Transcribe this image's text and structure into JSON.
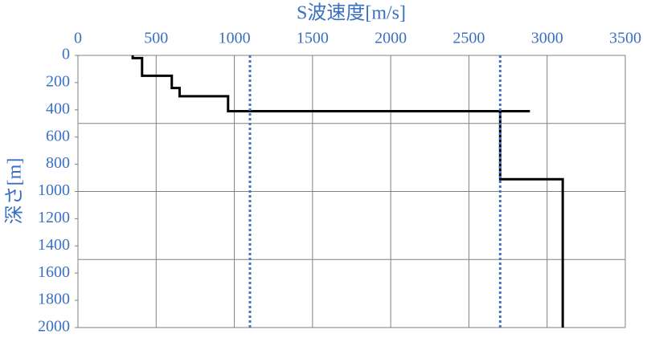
{
  "chart_data": {
    "type": "line",
    "x_label": "S波速度[m/s]",
    "y_label": "深さ[m]",
    "xlim": [
      0,
      3500
    ],
    "xticks": [
      0,
      500,
      1000,
      1500,
      2000,
      2500,
      3000,
      3500
    ],
    "ylim": [
      0,
      2000
    ],
    "yticks": [
      0,
      200,
      400,
      600,
      800,
      1000,
      1200,
      1400,
      1600,
      1800,
      2000
    ],
    "y_inverted": true,
    "x_axis_position": "top",
    "grid": true,
    "ygrid": [
      500,
      1000,
      1500
    ],
    "label_color": "#3a70c0",
    "grid_color": "#808080",
    "series": [
      {
        "color": "#000000",
        "dash": "solid",
        "x": [
          350,
          350,
          410,
          410,
          600,
          600,
          650,
          650,
          960,
          960,
          2890,
          null,
          2700,
          2700,
          3100,
          3100
        ],
        "values": [
          0,
          20,
          20,
          150,
          150,
          240,
          240,
          300,
          300,
          410,
          410,
          null,
          410,
          910,
          910,
          2000
        ]
      },
      {
        "color": "#4472c4",
        "dash": "dotted",
        "x": [
          1100,
          1100
        ],
        "values": [
          0,
          2000
        ]
      },
      {
        "color": "#4472c4",
        "dash": "dotted",
        "x": [
          2700,
          2700
        ],
        "values": [
          0,
          2000
        ]
      }
    ]
  }
}
